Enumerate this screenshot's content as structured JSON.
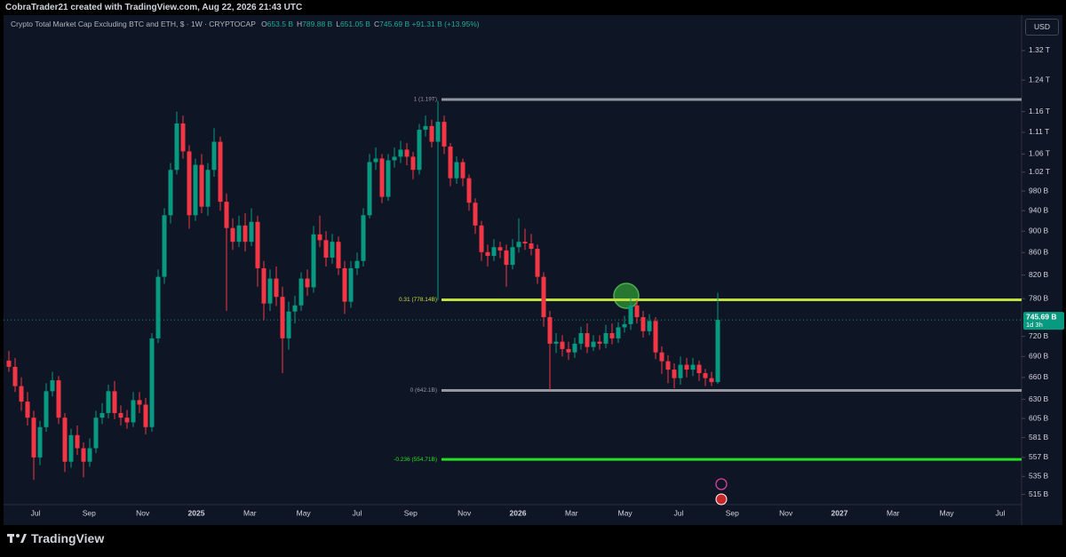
{
  "chart_data": {
    "type": "candlestick",
    "attribution": "CobraTrader21 created with TradingView.com, Aug 22, 2026 21:43 UTC",
    "title": "Crypto Total Market Cap Excluding BTC and ETH, $ · 1W · CRYPTOCAP",
    "ohlc": [
      {
        "label": "O",
        "value": "653.5 B"
      },
      {
        "label": "H",
        "value": "789.88 B"
      },
      {
        "label": "L",
        "value": "651.05 B"
      },
      {
        "label": "C",
        "value": "745.69 B"
      }
    ],
    "change": "+91.31 B (+13.95%)",
    "currency": "USD",
    "brand": "TradingView",
    "up_color": "#089981",
    "down_color": "#f23645",
    "log_scale": true,
    "open": [
      684,
      675,
      648,
      627,
      606,
      557,
      594,
      641,
      656,
      606,
      552,
      584,
      568,
      552,
      568,
      606,
      612,
      641,
      612,
      606,
      600,
      629,
      623,
      594,
      717,
      817,
      931,
      1025,
      1131,
      1066,
      931,
      1036,
      948,
      1025,
      1088,
      958,
      906,
      880,
      911,
      880,
      918,
      832,
      772,
      814,
      783,
      717,
      759,
      769,
      814,
      799,
      894,
      883,
      851,
      880,
      832,
      775,
      832,
      845,
      931,
      1042,
      1050,
      968,
      1046,
      1054,
      1070,
      1054,
      1025,
      1116,
      1125,
      1088,
      1135,
      1077,
      1007,
      1042,
      1007,
      956,
      911,
      861,
      854,
      870,
      864,
      838,
      870,
      880,
      877,
      867,
      817,
      750,
      709,
      712,
      701,
      696,
      709,
      725,
      704,
      712,
      709,
      725,
      717,
      734,
      739,
      769,
      750,
      728,
      744,
      696,
      683,
      671,
      659,
      678,
      671,
      678,
      666,
      659,
      653.5
    ],
    "high": [
      698,
      688,
      660,
      640,
      615,
      602,
      652,
      668,
      662,
      612,
      592,
      596,
      575,
      580,
      615,
      625,
      650,
      655,
      622,
      616,
      640,
      640,
      632,
      725,
      830,
      945,
      1040,
      1160,
      1150,
      1080,
      1050,
      1060,
      1040,
      1120,
      1100,
      975,
      925,
      930,
      935,
      945,
      930,
      845,
      830,
      835,
      800,
      775,
      785,
      825,
      830,
      910,
      930,
      900,
      895,
      890,
      845,
      845,
      860,
      945,
      1060,
      1075,
      1060,
      1060,
      1075,
      1090,
      1085,
      1065,
      1130,
      1150,
      1140,
      1186,
      1150,
      1085,
      1055,
      1050,
      1015,
      965,
      920,
      875,
      885,
      880,
      875,
      885,
      925,
      905,
      895,
      875,
      825,
      760,
      725,
      722,
      712,
      718,
      735,
      740,
      722,
      722,
      738,
      740,
      742,
      752,
      782,
      778,
      760,
      755,
      750,
      705,
      692,
      680,
      690,
      688,
      688,
      684,
      672,
      668,
      789.88
    ],
    "low": [
      668,
      640,
      615,
      596,
      531,
      548,
      588,
      634,
      598,
      540,
      545,
      560,
      534,
      546,
      562,
      598,
      605,
      604,
      596,
      592,
      594,
      612,
      585,
      588,
      710,
      805,
      915,
      1015,
      1050,
      905,
      920,
      935,
      930,
      1010,
      940,
      760,
      865,
      870,
      862,
      872,
      800,
      745,
      760,
      768,
      666,
      700,
      740,
      760,
      785,
      790,
      870,
      835,
      840,
      820,
      755,
      765,
      820,
      835,
      925,
      1025,
      955,
      960,
      1030,
      1040,
      1035,
      1005,
      1015,
      1100,
      1075,
      778,
      1060,
      990,
      995,
      990,
      940,
      895,
      845,
      835,
      845,
      850,
      800,
      830,
      860,
      865,
      855,
      805,
      735,
      643,
      695,
      690,
      685,
      688,
      700,
      695,
      698,
      700,
      702,
      708,
      710,
      726,
      730,
      740,
      718,
      722,
      686,
      665,
      652,
      645,
      650,
      660,
      662,
      655,
      648,
      648,
      651.05
    ],
    "close": [
      675,
      648,
      627,
      606,
      557,
      594,
      641,
      656,
      606,
      552,
      584,
      568,
      552,
      568,
      606,
      612,
      641,
      612,
      606,
      600,
      629,
      623,
      594,
      717,
      817,
      931,
      1025,
      1131,
      1066,
      931,
      1036,
      948,
      1025,
      1088,
      958,
      906,
      880,
      911,
      880,
      918,
      832,
      772,
      814,
      783,
      717,
      759,
      769,
      814,
      799,
      894,
      883,
      851,
      880,
      832,
      775,
      832,
      845,
      931,
      1042,
      1050,
      968,
      1046,
      1054,
      1070,
      1054,
      1025,
      1116,
      1125,
      1088,
      1135,
      1077,
      1007,
      1042,
      1007,
      956,
      911,
      861,
      854,
      870,
      864,
      838,
      870,
      880,
      877,
      867,
      817,
      750,
      709,
      712,
      701,
      696,
      709,
      725,
      704,
      712,
      709,
      725,
      717,
      734,
      739,
      769,
      750,
      728,
      744,
      696,
      683,
      671,
      659,
      678,
      671,
      678,
      666,
      659,
      653.5,
      745.69
    ],
    "last_price_label": "745.69 B",
    "countdown": "1d 3h",
    "x_labels": [
      "Jul",
      "Sep",
      "Nov",
      "2025",
      "Mar",
      "May",
      "Jul",
      "Sep",
      "Nov",
      "2026",
      "Mar",
      "May",
      "Jul",
      "Sep",
      "Nov",
      "2027",
      "Mar",
      "May",
      "Jul"
    ],
    "ylim": [
      504,
      1430
    ],
    "yticks": [
      {
        "value": 1320,
        "label": "1.32 T"
      },
      {
        "value": 1240,
        "label": "1.24 T"
      },
      {
        "value": 1160,
        "label": "1.16 T"
      },
      {
        "value": 1110,
        "label": "1.11 T"
      },
      {
        "value": 1060,
        "label": "1.06 T"
      },
      {
        "value": 1020,
        "label": "1.02 T"
      },
      {
        "value": 980,
        "label": "980 B"
      },
      {
        "value": 940,
        "label": "940 B"
      },
      {
        "value": 900,
        "label": "900 B"
      },
      {
        "value": 860,
        "label": "860 B"
      },
      {
        "value": 820,
        "label": "820 B"
      },
      {
        "value": 780,
        "label": "780 B"
      },
      {
        "value": 720,
        "label": "720 B"
      },
      {
        "value": 690,
        "label": "690 B"
      },
      {
        "value": 660,
        "label": "660 B"
      },
      {
        "value": 630,
        "label": "630 B"
      },
      {
        "value": 605,
        "label": "605 B"
      },
      {
        "value": 581,
        "label": "581 B"
      },
      {
        "value": 557,
        "label": "557 B"
      },
      {
        "value": 535,
        "label": "535 B"
      },
      {
        "value": 515,
        "label": "515 B"
      }
    ],
    "levels": [
      {
        "label": "1 (1.19T)",
        "value": 1190,
        "color": "#9598a1"
      },
      {
        "label": "0.31 (778.14B)",
        "value": 778.14,
        "color": "#c0e040"
      },
      {
        "label": "0 (642.1B)",
        "value": 642.1,
        "color": "#9598a1"
      },
      {
        "label": "-0.236 (554.71B)",
        "value": 554.71,
        "color": "#22e022"
      }
    ]
  }
}
